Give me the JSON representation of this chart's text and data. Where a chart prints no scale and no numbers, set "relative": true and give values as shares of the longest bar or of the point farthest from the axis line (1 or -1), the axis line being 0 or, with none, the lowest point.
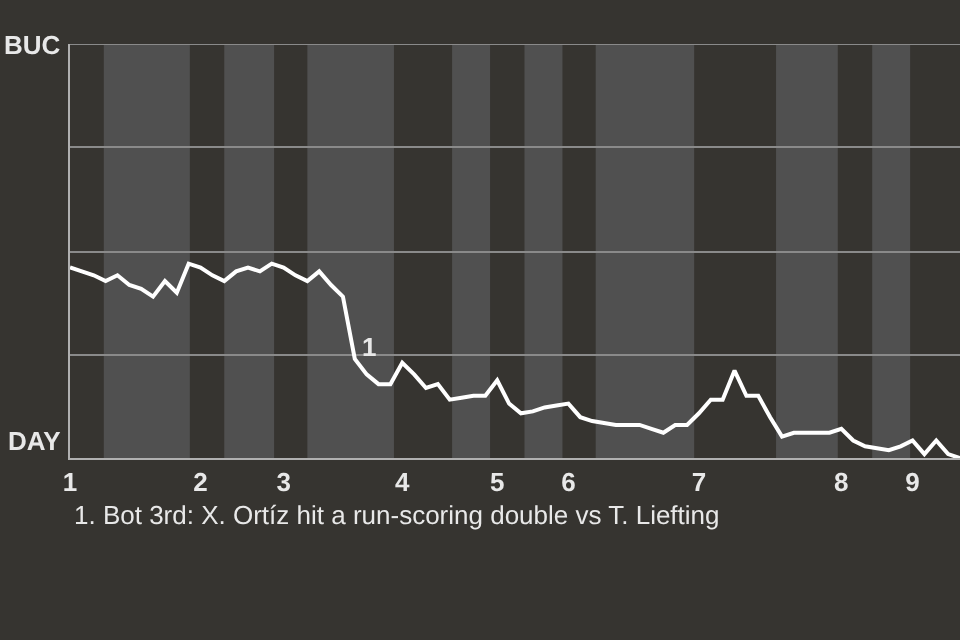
{
  "chart_data": {
    "type": "line",
    "relative": true,
    "categories": [
      "1",
      null,
      null,
      null,
      null,
      null,
      null,
      null,
      null,
      null,
      null,
      "2",
      null,
      null,
      null,
      null,
      null,
      null,
      "3",
      null,
      null,
      null,
      null,
      null,
      null,
      null,
      null,
      null,
      "4",
      null,
      null,
      null,
      null,
      null,
      null,
      null,
      "5",
      null,
      null,
      null,
      null,
      null,
      "6",
      null,
      null,
      null,
      null,
      null,
      null,
      null,
      null,
      null,
      null,
      "7",
      null,
      null,
      null,
      null,
      null,
      null,
      null,
      null,
      null,
      null,
      null,
      "8",
      null,
      null,
      null,
      null,
      null,
      "9",
      null,
      null,
      null,
      null
    ],
    "series": [
      {
        "color": "#ffffff",
        "values": [
          0.98,
          0.96,
          0.94,
          0.91,
          0.94,
          0.89,
          0.87,
          0.83,
          0.91,
          0.85,
          1,
          0.98,
          0.94,
          0.91,
          0.96,
          0.98,
          0.96,
          1,
          0.98,
          0.94,
          0.91,
          0.96,
          0.89,
          0.83,
          0.51,
          0.43,
          0.38,
          0.38,
          0.49,
          0.43,
          0.36,
          0.38,
          0.3,
          0.31,
          0.32,
          0.32,
          0.4,
          0.28,
          0.23,
          0.24,
          0.26,
          0.27,
          0.28,
          0.21,
          0.19,
          0.18,
          0.17,
          0.17,
          0.17,
          0.15,
          0.13,
          0.17,
          0.17,
          0.23,
          0.3,
          0.3,
          0.45,
          0.32,
          0.32,
          0.21,
          0.11,
          0.13,
          0.13,
          0.13,
          0.13,
          0.15,
          0.09,
          0.06,
          0.05,
          0.04,
          0.06,
          0.09,
          0.02,
          0.09,
          0.02,
          0
        ]
      }
    ],
    "ref_lines": [
      {
        "axis": "y",
        "value": 0.53,
        "color": "#8a8a8a"
      },
      {
        "axis": "y",
        "value": 1.06,
        "color": "#8a8a8a"
      },
      {
        "axis": "y",
        "value": 1.6,
        "color": "#8a8a8a"
      },
      {
        "axis": "y",
        "value": 2.13,
        "color": "#8a8a8a"
      }
    ],
    "annotations": [
      "BUC",
      "DAY",
      "1",
      "1. Bot 3rd: X. Ortíz hit a run-scoring double vs T. Liefting"
    ]
  }
}
